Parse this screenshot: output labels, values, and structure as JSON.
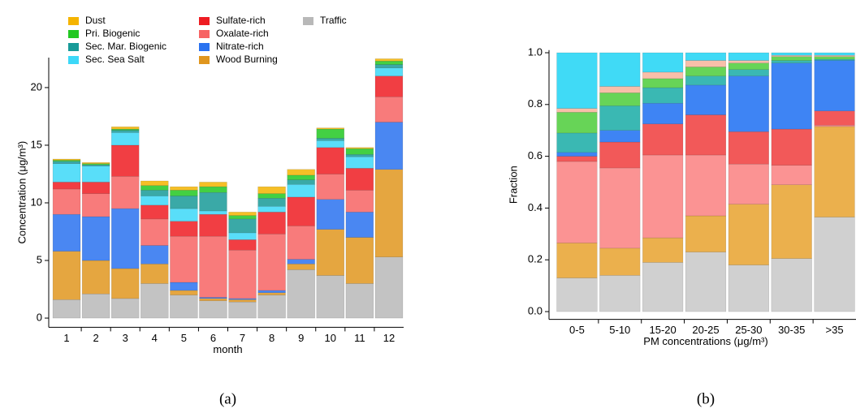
{
  "chart_data": [
    {
      "type": "bar",
      "stacked": true,
      "caption": "(a)",
      "x_label": "month",
      "y_label": "Concentration (μg/m³)",
      "categories": [
        "1",
        "2",
        "3",
        "4",
        "5",
        "6",
        "7",
        "8",
        "9",
        "10",
        "11",
        "12"
      ],
      "ylim": [
        -0.8,
        22.6
      ],
      "yticks": [
        0,
        5,
        10,
        15,
        20
      ],
      "grid": false,
      "legend": true,
      "series": [
        {
          "name": "Traffic",
          "color": "#b8b8b8",
          "values": [
            1.6,
            2.1,
            1.7,
            3.0,
            2.0,
            1.5,
            1.4,
            2.0,
            4.2,
            3.7,
            3.0,
            5.3
          ]
        },
        {
          "name": "Wood Burning",
          "color": "#e0961e",
          "values": [
            4.2,
            2.9,
            2.6,
            1.7,
            0.4,
            0.2,
            0.2,
            0.2,
            0.5,
            4.0,
            4.0,
            7.6
          ]
        },
        {
          "name": "Nitrate-rich",
          "color": "#2a72f0",
          "values": [
            3.2,
            3.8,
            5.2,
            1.6,
            0.7,
            0.1,
            0.1,
            0.2,
            0.4,
            2.6,
            2.2,
            4.1
          ]
        },
        {
          "name": "Oxalate-rich",
          "color": "#f76464",
          "values": [
            2.2,
            2.0,
            2.8,
            2.3,
            4.0,
            5.3,
            4.2,
            4.9,
            2.9,
            2.2,
            1.9,
            2.2
          ]
        },
        {
          "name": "Sulfate-rich",
          "color": "#ee1c22",
          "values": [
            0.6,
            1.0,
            2.7,
            1.2,
            1.3,
            1.9,
            0.9,
            1.9,
            2.5,
            2.3,
            1.9,
            1.8
          ]
        },
        {
          "name": "Sec. Sea Salt",
          "color": "#3cd8f8",
          "values": [
            1.6,
            1.4,
            1.1,
            0.8,
            1.1,
            0.3,
            0.6,
            0.5,
            1.1,
            0.6,
            1.0,
            0.7
          ]
        },
        {
          "name": "Sec. Mar. Biogenic",
          "color": "#179a98",
          "values": [
            0.2,
            0.1,
            0.2,
            0.5,
            1.1,
            1.6,
            1.2,
            0.7,
            0.4,
            0.2,
            0.2,
            0.3
          ]
        },
        {
          "name": "Pri. Biogenic",
          "color": "#22c822",
          "values": [
            0.1,
            0.1,
            0.1,
            0.4,
            0.5,
            0.5,
            0.3,
            0.4,
            0.4,
            0.8,
            0.5,
            0.3
          ]
        },
        {
          "name": "Dust",
          "color": "#f5b400",
          "values": [
            0.1,
            0.1,
            0.2,
            0.4,
            0.3,
            0.4,
            0.3,
            0.6,
            0.5,
            0.1,
            0.1,
            0.2
          ]
        }
      ]
    },
    {
      "type": "bar",
      "stacked": true,
      "caption": "(b)",
      "x_label": "PM concentrations (μg/m³)",
      "y_label": "Fraction",
      "categories": [
        "0-5",
        "5-10",
        "15-20",
        "20-25",
        "25-30",
        "30-35",
        ">35"
      ],
      "ylim": [
        -0.03,
        1.01
      ],
      "yticks": [
        {
          "value": 0,
          "label": "0.0"
        },
        {
          "value": 0.2,
          "label": "0.2"
        },
        {
          "value": 0.4,
          "label": "0.4"
        },
        {
          "value": 0.6,
          "label": "0.6"
        },
        {
          "value": 0.8,
          "label": "0.8"
        },
        {
          "value": 1,
          "label": "1.0"
        }
      ],
      "grid": false,
      "legend": false,
      "series": [
        {
          "color": "#c8c8c8",
          "values": [
            0.13,
            0.14,
            0.19,
            0.23,
            0.18,
            0.205,
            0.365
          ]
        },
        {
          "color": "#e8a22e",
          "values": [
            0.135,
            0.105,
            0.095,
            0.14,
            0.235,
            0.285,
            0.35
          ]
        },
        {
          "color": "#fa8080",
          "values": [
            0.315,
            0.31,
            0.32,
            0.235,
            0.155,
            0.075,
            0.005
          ]
        },
        {
          "color": "#f03c3c",
          "values": [
            0.02,
            0.1,
            0.12,
            0.155,
            0.125,
            0.14,
            0.055
          ]
        },
        {
          "color": "#1c6ef2",
          "values": [
            0.015,
            0.045,
            0.08,
            0.115,
            0.215,
            0.255,
            0.195
          ]
        },
        {
          "color": "#18aca6",
          "values": [
            0.075,
            0.095,
            0.06,
            0.035,
            0.025,
            0.01,
            0.005
          ]
        },
        {
          "color": "#4ccd3a",
          "values": [
            0.08,
            0.05,
            0.035,
            0.035,
            0.025,
            0.015,
            0.01
          ]
        },
        {
          "color": "#f7b49a",
          "values": [
            0.015,
            0.025,
            0.025,
            0.025,
            0.01,
            0.005,
            0.005
          ]
        },
        {
          "color": "#1fd4f5",
          "values": [
            0.215,
            0.13,
            0.075,
            0.03,
            0.03,
            0.01,
            0.01
          ]
        }
      ]
    }
  ]
}
